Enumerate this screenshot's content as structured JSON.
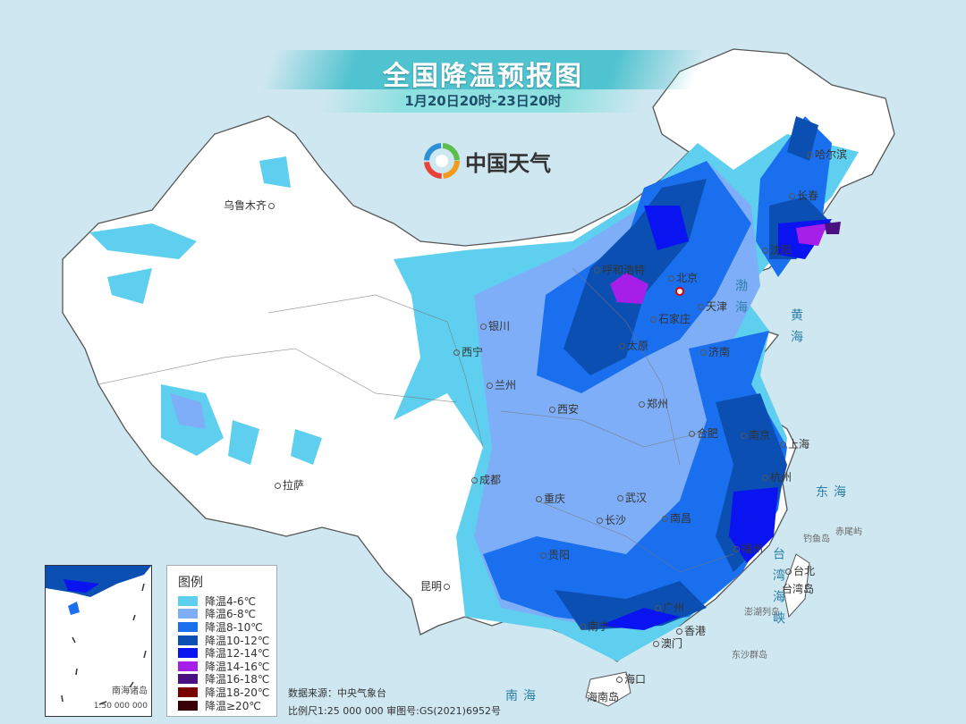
{
  "title": "全国降温预报图",
  "subtitle": "1月20日20时-23日20时",
  "logo": {
    "text": "中国天气",
    "icon": "china-weather-swirl-logo"
  },
  "cities": [
    "乌鲁木齐",
    "拉萨",
    "西宁",
    "兰州",
    "银川",
    "呼和浩特",
    "北京",
    "天津",
    "石家庄",
    "太原",
    "济南",
    "郑州",
    "西安",
    "成都",
    "重庆",
    "武汉",
    "合肥",
    "南京",
    "上海",
    "杭州",
    "南昌",
    "长沙",
    "贵阳",
    "昆明",
    "福州",
    "台北",
    "广州",
    "南宁",
    "香港",
    "澳门",
    "海口",
    "沈阳",
    "长春",
    "哈尔滨"
  ],
  "islands": [
    "台湾岛",
    "海南岛",
    "钓鱼岛",
    "赤尾屿",
    "澎湖列岛",
    "东沙群岛"
  ],
  "seas": [
    "渤海",
    "黄海",
    "东海",
    "南海",
    "台湾海峡"
  ],
  "legend": {
    "title": "图例",
    "items": [
      {
        "label": "降温4-6℃",
        "color": "#5ecfee"
      },
      {
        "label": "降温6-8℃",
        "color": "#7eaef7"
      },
      {
        "label": "降温8-10℃",
        "color": "#1a6fef"
      },
      {
        "label": "降温10-12℃",
        "color": "#0b4fb3"
      },
      {
        "label": "降温12-14℃",
        "color": "#0a14f0"
      },
      {
        "label": "降温14-16℃",
        "color": "#a61fe8"
      },
      {
        "label": "降温16-18℃",
        "color": "#4a0f80"
      },
      {
        "label": "降温18-20℃",
        "color": "#7a0000"
      },
      {
        "label": "降温≥20℃",
        "color": "#3a0008"
      }
    ]
  },
  "inset": {
    "name": "南海诸岛",
    "scale": "1:50 000 000"
  },
  "source": {
    "line1": "数据来源：中央气象台",
    "line2": "比例尺1:25 000 000   审图号:GS(2021)6952号"
  }
}
